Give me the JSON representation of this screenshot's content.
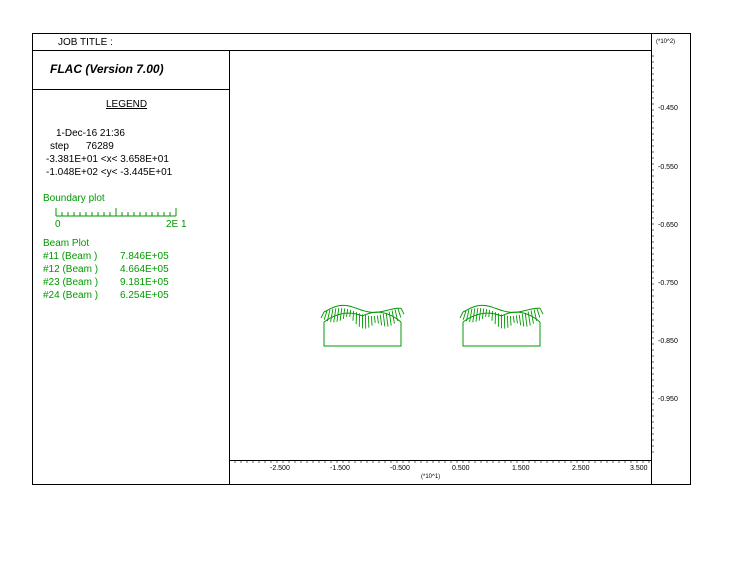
{
  "header": {
    "job_title_label": "JOB TITLE :",
    "scale_y_top": "(*10^2)"
  },
  "title_box": {
    "program": "FLAC (Version 7.00)"
  },
  "legend": {
    "heading": "LEGEND",
    "date_line": "1-Dec-16  21:36",
    "step_label": "step",
    "step_value": "76289",
    "x_range": "-3.381E+01 <x<  3.658E+01",
    "y_range": "-1.048E+02 <y< -3.445E+01",
    "boundary_title": "Boundary plot",
    "scale_min": "0",
    "scale_max": "2E  1",
    "beam_title": "Beam Plot",
    "beams": [
      {
        "id": "#11 (Beam )",
        "value": "7.846E+05"
      },
      {
        "id": "#12 (Beam )",
        "value": "4.664E+05"
      },
      {
        "id": "#23 (Beam )",
        "value": "9.181E+05"
      },
      {
        "id": "#24 (Beam )",
        "value": "6.254E+05"
      }
    ],
    "green": "#009900"
  },
  "axes": {
    "x_ticks": [
      "-2.500",
      "-1.500",
      "-0.500",
      "0.500",
      "1.500",
      "2.500",
      "3.500"
    ],
    "x_unit": "(*10^1)",
    "y_ticks": [
      "-0.450",
      "-0.550",
      "-0.650",
      "-0.750",
      "-0.850",
      "-0.950"
    ]
  }
}
